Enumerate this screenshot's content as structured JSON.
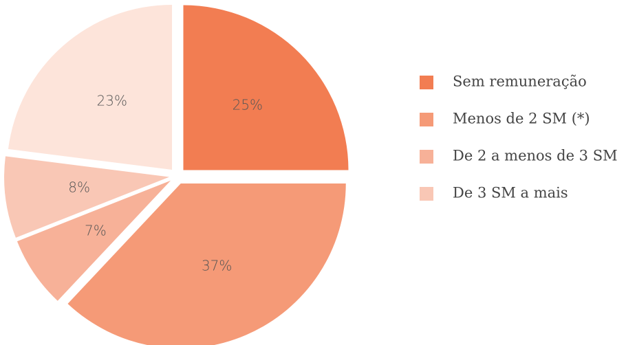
{
  "chart_data": {
    "type": "pie",
    "categories": [
      "Sem remuneração",
      "Menos de 2 SM (*)",
      "De 2 a menos de 3 SM",
      "De 3 SM a mais",
      null
    ],
    "values": [
      25,
      37,
      7,
      8,
      23
    ],
    "value_labels": [
      "25%",
      "37%",
      "7%",
      "8%",
      "23%"
    ],
    "colors": [
      "#f27d52",
      "#f59a77",
      "#f7b198",
      "#f9c7b5",
      "#fde4da"
    ],
    "legend": "right"
  }
}
